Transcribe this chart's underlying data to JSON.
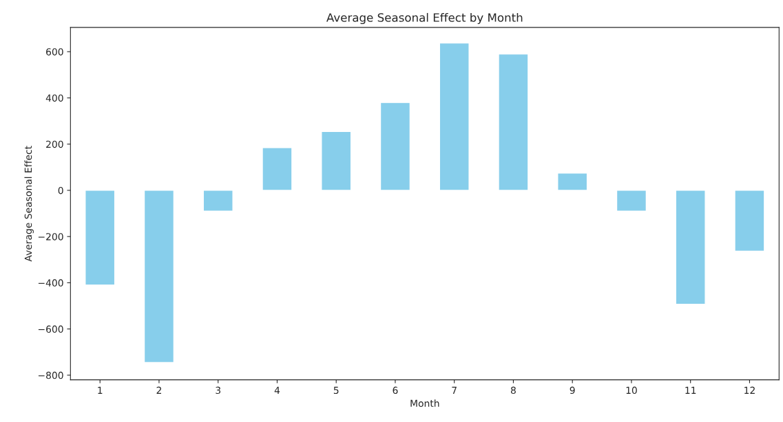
{
  "chart_data": {
    "type": "bar",
    "title": "Average Seasonal Effect by Month",
    "xlabel": "Month",
    "ylabel": "Average Seasonal Effect",
    "categories": [
      "1",
      "2",
      "3",
      "4",
      "5",
      "6",
      "7",
      "8",
      "9",
      "10",
      "11",
      "12"
    ],
    "values": [
      -410,
      -745,
      -90,
      185,
      255,
      380,
      638,
      590,
      75,
      -90,
      -493,
      -263
    ],
    "color": "#87ceeb",
    "ylim": [
      -820,
      705
    ],
    "yticks": [
      -800,
      -600,
      -400,
      -200,
      0,
      200,
      400,
      600
    ],
    "grid": false,
    "legend": false
  }
}
